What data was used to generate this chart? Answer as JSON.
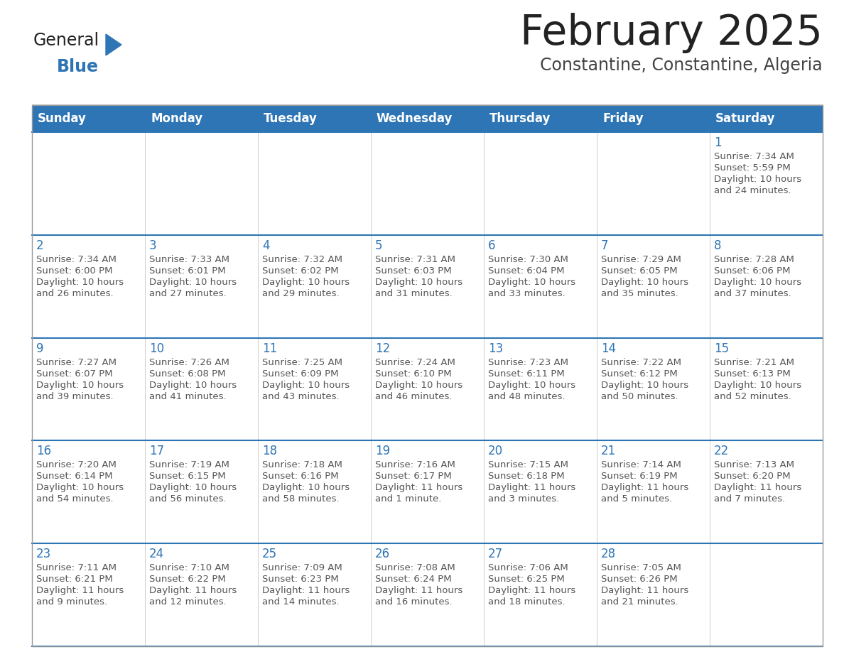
{
  "title": "February 2025",
  "subtitle": "Constantine, Constantine, Algeria",
  "header_bg": "#2E75B6",
  "header_text_color": "#FFFFFF",
  "cell_bg": "#FFFFFF",
  "day_number_color": "#2E75B6",
  "text_color": "#555555",
  "border_color": "#BBBBBB",
  "row_line_color": "#2E75B6",
  "days_of_week": [
    "Sunday",
    "Monday",
    "Tuesday",
    "Wednesday",
    "Thursday",
    "Friday",
    "Saturday"
  ],
  "logo_general_color": "#222222",
  "logo_blue_color": "#2E75B6",
  "logo_triangle_color": "#2E75B6",
  "title_color": "#222222",
  "subtitle_color": "#444444",
  "calendar_data": [
    [
      null,
      null,
      null,
      null,
      null,
      null,
      {
        "day": "1",
        "sunrise": "Sunrise: 7:34 AM",
        "sunset": "Sunset: 5:59 PM",
        "daylight_line1": "Daylight: 10 hours",
        "daylight_line2": "and 24 minutes."
      }
    ],
    [
      {
        "day": "2",
        "sunrise": "Sunrise: 7:34 AM",
        "sunset": "Sunset: 6:00 PM",
        "daylight_line1": "Daylight: 10 hours",
        "daylight_line2": "and 26 minutes."
      },
      {
        "day": "3",
        "sunrise": "Sunrise: 7:33 AM",
        "sunset": "Sunset: 6:01 PM",
        "daylight_line1": "Daylight: 10 hours",
        "daylight_line2": "and 27 minutes."
      },
      {
        "day": "4",
        "sunrise": "Sunrise: 7:32 AM",
        "sunset": "Sunset: 6:02 PM",
        "daylight_line1": "Daylight: 10 hours",
        "daylight_line2": "and 29 minutes."
      },
      {
        "day": "5",
        "sunrise": "Sunrise: 7:31 AM",
        "sunset": "Sunset: 6:03 PM",
        "daylight_line1": "Daylight: 10 hours",
        "daylight_line2": "and 31 minutes."
      },
      {
        "day": "6",
        "sunrise": "Sunrise: 7:30 AM",
        "sunset": "Sunset: 6:04 PM",
        "daylight_line1": "Daylight: 10 hours",
        "daylight_line2": "and 33 minutes."
      },
      {
        "day": "7",
        "sunrise": "Sunrise: 7:29 AM",
        "sunset": "Sunset: 6:05 PM",
        "daylight_line1": "Daylight: 10 hours",
        "daylight_line2": "and 35 minutes."
      },
      {
        "day": "8",
        "sunrise": "Sunrise: 7:28 AM",
        "sunset": "Sunset: 6:06 PM",
        "daylight_line1": "Daylight: 10 hours",
        "daylight_line2": "and 37 minutes."
      }
    ],
    [
      {
        "day": "9",
        "sunrise": "Sunrise: 7:27 AM",
        "sunset": "Sunset: 6:07 PM",
        "daylight_line1": "Daylight: 10 hours",
        "daylight_line2": "and 39 minutes."
      },
      {
        "day": "10",
        "sunrise": "Sunrise: 7:26 AM",
        "sunset": "Sunset: 6:08 PM",
        "daylight_line1": "Daylight: 10 hours",
        "daylight_line2": "and 41 minutes."
      },
      {
        "day": "11",
        "sunrise": "Sunrise: 7:25 AM",
        "sunset": "Sunset: 6:09 PM",
        "daylight_line1": "Daylight: 10 hours",
        "daylight_line2": "and 43 minutes."
      },
      {
        "day": "12",
        "sunrise": "Sunrise: 7:24 AM",
        "sunset": "Sunset: 6:10 PM",
        "daylight_line1": "Daylight: 10 hours",
        "daylight_line2": "and 46 minutes."
      },
      {
        "day": "13",
        "sunrise": "Sunrise: 7:23 AM",
        "sunset": "Sunset: 6:11 PM",
        "daylight_line1": "Daylight: 10 hours",
        "daylight_line2": "and 48 minutes."
      },
      {
        "day": "14",
        "sunrise": "Sunrise: 7:22 AM",
        "sunset": "Sunset: 6:12 PM",
        "daylight_line1": "Daylight: 10 hours",
        "daylight_line2": "and 50 minutes."
      },
      {
        "day": "15",
        "sunrise": "Sunrise: 7:21 AM",
        "sunset": "Sunset: 6:13 PM",
        "daylight_line1": "Daylight: 10 hours",
        "daylight_line2": "and 52 minutes."
      }
    ],
    [
      {
        "day": "16",
        "sunrise": "Sunrise: 7:20 AM",
        "sunset": "Sunset: 6:14 PM",
        "daylight_line1": "Daylight: 10 hours",
        "daylight_line2": "and 54 minutes."
      },
      {
        "day": "17",
        "sunrise": "Sunrise: 7:19 AM",
        "sunset": "Sunset: 6:15 PM",
        "daylight_line1": "Daylight: 10 hours",
        "daylight_line2": "and 56 minutes."
      },
      {
        "day": "18",
        "sunrise": "Sunrise: 7:18 AM",
        "sunset": "Sunset: 6:16 PM",
        "daylight_line1": "Daylight: 10 hours",
        "daylight_line2": "and 58 minutes."
      },
      {
        "day": "19",
        "sunrise": "Sunrise: 7:16 AM",
        "sunset": "Sunset: 6:17 PM",
        "daylight_line1": "Daylight: 11 hours",
        "daylight_line2": "and 1 minute."
      },
      {
        "day": "20",
        "sunrise": "Sunrise: 7:15 AM",
        "sunset": "Sunset: 6:18 PM",
        "daylight_line1": "Daylight: 11 hours",
        "daylight_line2": "and 3 minutes."
      },
      {
        "day": "21",
        "sunrise": "Sunrise: 7:14 AM",
        "sunset": "Sunset: 6:19 PM",
        "daylight_line1": "Daylight: 11 hours",
        "daylight_line2": "and 5 minutes."
      },
      {
        "day": "22",
        "sunrise": "Sunrise: 7:13 AM",
        "sunset": "Sunset: 6:20 PM",
        "daylight_line1": "Daylight: 11 hours",
        "daylight_line2": "and 7 minutes."
      }
    ],
    [
      {
        "day": "23",
        "sunrise": "Sunrise: 7:11 AM",
        "sunset": "Sunset: 6:21 PM",
        "daylight_line1": "Daylight: 11 hours",
        "daylight_line2": "and 9 minutes."
      },
      {
        "day": "24",
        "sunrise": "Sunrise: 7:10 AM",
        "sunset": "Sunset: 6:22 PM",
        "daylight_line1": "Daylight: 11 hours",
        "daylight_line2": "and 12 minutes."
      },
      {
        "day": "25",
        "sunrise": "Sunrise: 7:09 AM",
        "sunset": "Sunset: 6:23 PM",
        "daylight_line1": "Daylight: 11 hours",
        "daylight_line2": "and 14 minutes."
      },
      {
        "day": "26",
        "sunrise": "Sunrise: 7:08 AM",
        "sunset": "Sunset: 6:24 PM",
        "daylight_line1": "Daylight: 11 hours",
        "daylight_line2": "and 16 minutes."
      },
      {
        "day": "27",
        "sunrise": "Sunrise: 7:06 AM",
        "sunset": "Sunset: 6:25 PM",
        "daylight_line1": "Daylight: 11 hours",
        "daylight_line2": "and 18 minutes."
      },
      {
        "day": "28",
        "sunrise": "Sunrise: 7:05 AM",
        "sunset": "Sunset: 6:26 PM",
        "daylight_line1": "Daylight: 11 hours",
        "daylight_line2": "and 21 minutes."
      },
      null
    ]
  ]
}
